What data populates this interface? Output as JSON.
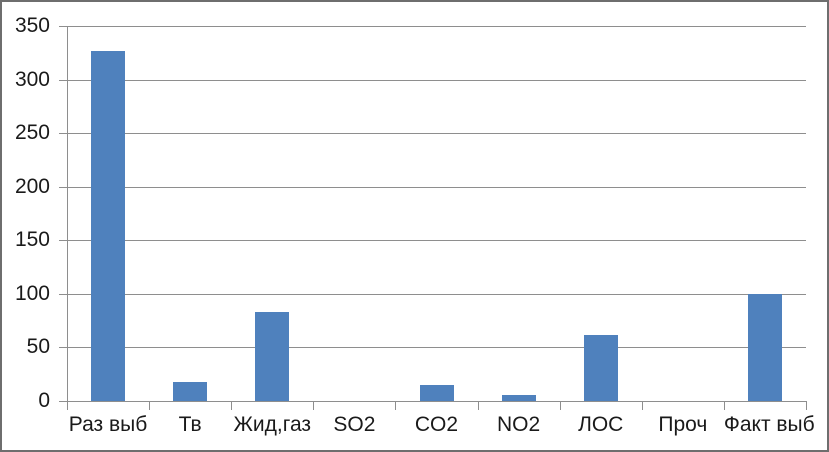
{
  "chart_data": {
    "type": "bar",
    "categories": [
      "Раз выб",
      "Тв",
      "Жид,газ",
      "SO2",
      "CO2",
      "NO2",
      "ЛОС",
      "Проч",
      "Факт выб"
    ],
    "values": [
      327,
      18,
      83,
      0,
      15,
      6,
      62,
      0,
      100
    ],
    "yticks": [
      0,
      50,
      100,
      150,
      200,
      250,
      300,
      350
    ],
    "ylim": [
      0,
      350
    ],
    "grid": true,
    "legend": false,
    "colors": {
      "bar": "#4F81BD",
      "gridline": "#8E8E8E",
      "axis": "#8E8E8E",
      "text": "#1A1A1A",
      "frame_border": "#6E6E6E",
      "background": "#FFFFFF"
    }
  }
}
